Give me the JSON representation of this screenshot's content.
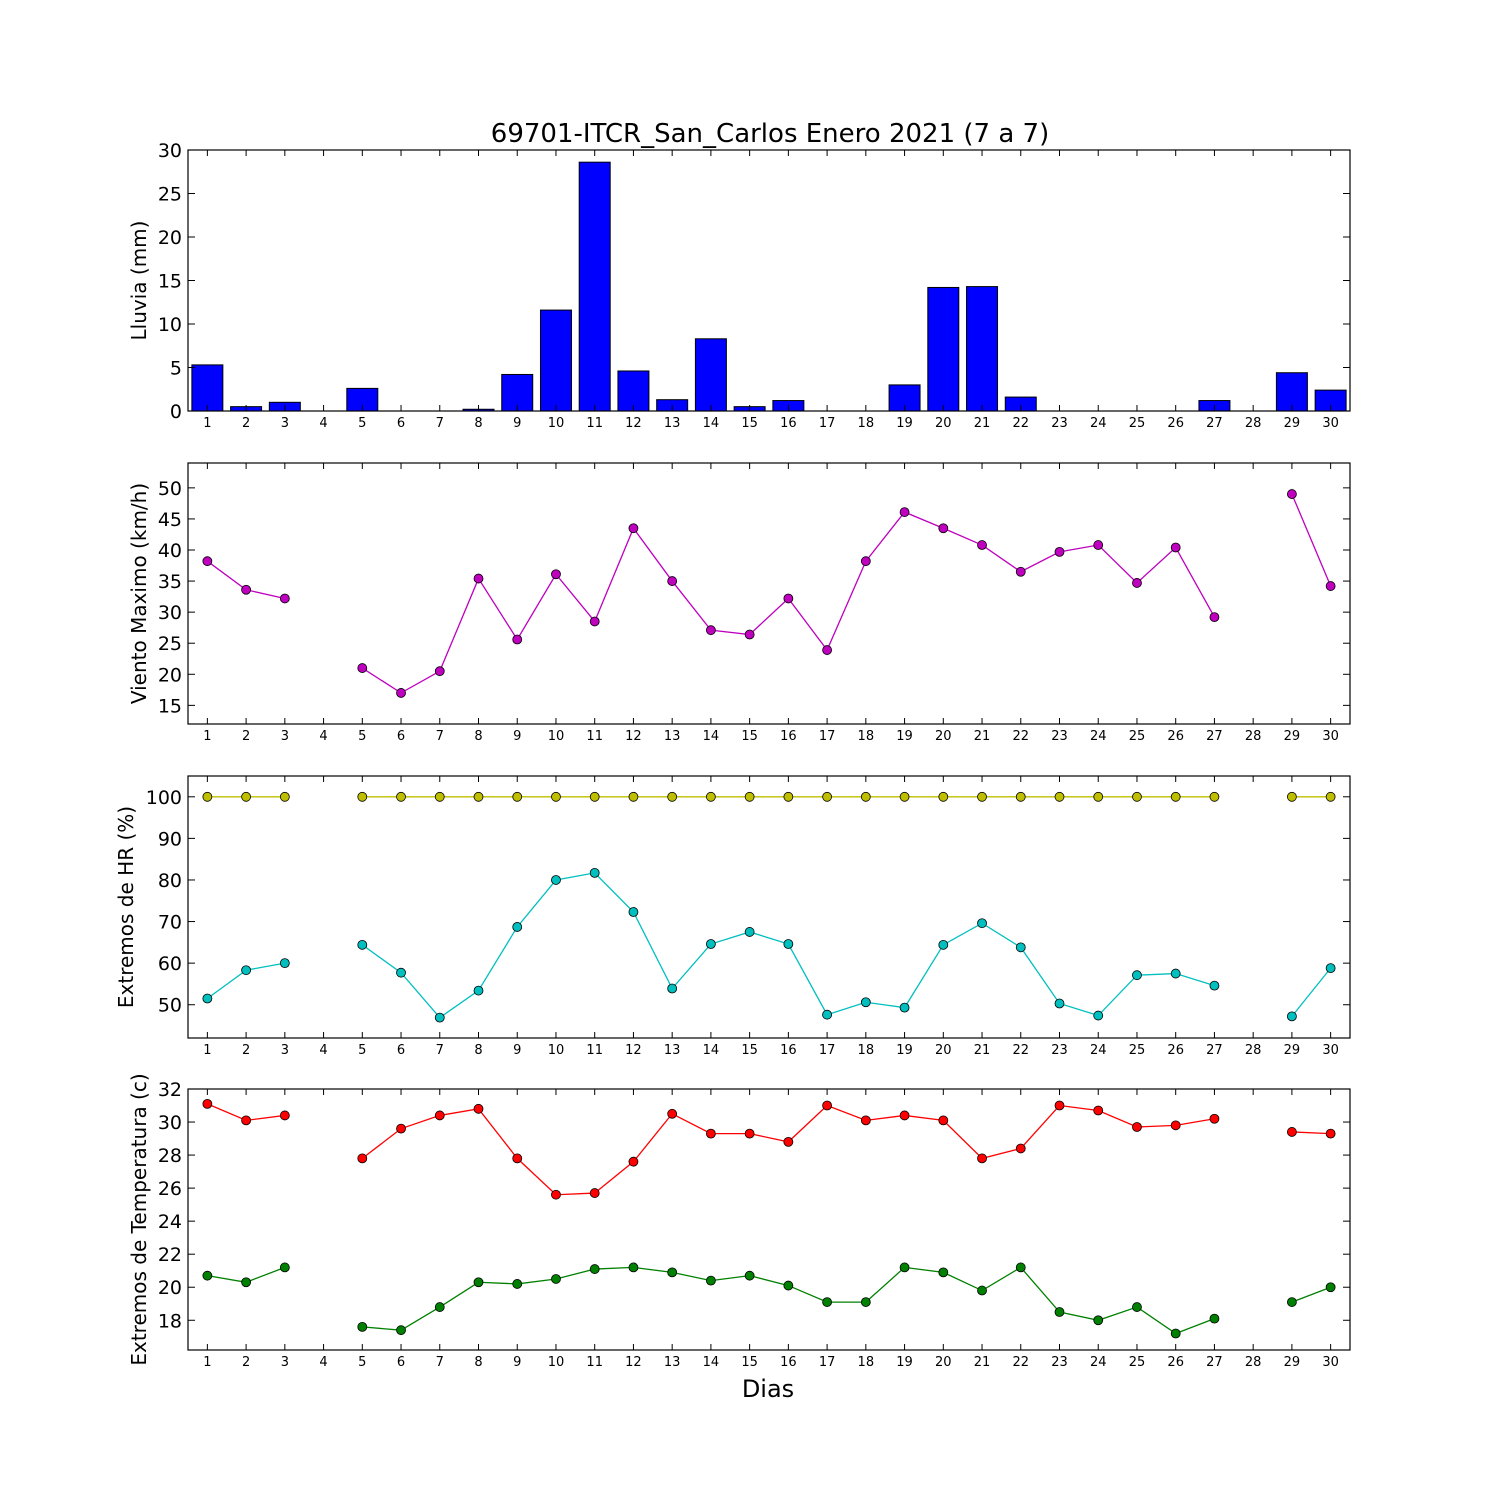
{
  "title": "69701-ITCR_San_Carlos Enero 2021  (7 a 7)",
  "xlabel": "Dias",
  "colors": {
    "rain": "#0000ff",
    "wind": "#bf00bf",
    "hr_max": "#bfbf00",
    "hr_min": "#00bfbf",
    "temp_max": "#ff0000",
    "temp_min": "#008000"
  },
  "chart_data": [
    {
      "type": "bar",
      "ylabel": "Lluvia (mm)",
      "ylim": [
        0,
        30
      ],
      "yticks": [
        0,
        5,
        10,
        15,
        20,
        25,
        30
      ],
      "x": [
        1,
        2,
        3,
        4,
        5,
        6,
        7,
        8,
        9,
        10,
        11,
        12,
        13,
        14,
        15,
        16,
        17,
        18,
        19,
        20,
        21,
        22,
        23,
        24,
        25,
        26,
        27,
        28,
        29,
        30
      ],
      "values": [
        5.3,
        0.5,
        1.0,
        0,
        2.6,
        0,
        0,
        0.2,
        4.2,
        11.6,
        28.6,
        4.6,
        1.3,
        8.3,
        0.5,
        1.2,
        0,
        0,
        3.0,
        14.2,
        14.3,
        1.6,
        0,
        0,
        0,
        0,
        1.2,
        0,
        4.4,
        2.4
      ]
    },
    {
      "type": "line",
      "ylabel": "Viento Maximo (km/h)",
      "ylim": [
        12,
        54
      ],
      "yticks": [
        15,
        20,
        25,
        30,
        35,
        40,
        45,
        50
      ],
      "x": [
        1,
        2,
        3,
        4,
        5,
        6,
        7,
        8,
        9,
        10,
        11,
        12,
        13,
        14,
        15,
        16,
        17,
        18,
        19,
        20,
        21,
        22,
        23,
        24,
        25,
        26,
        27,
        28,
        29,
        30
      ],
      "series": [
        {
          "color": "wind",
          "values": [
            38.2,
            33.6,
            32.2,
            null,
            21.0,
            17.0,
            20.5,
            35.4,
            25.6,
            36.1,
            28.5,
            43.5,
            35.0,
            27.1,
            26.4,
            32.2,
            23.9,
            38.2,
            46.1,
            43.5,
            40.8,
            36.5,
            39.7,
            40.8,
            34.7,
            40.4,
            29.2,
            null,
            49.0,
            34.2
          ]
        }
      ]
    },
    {
      "type": "line",
      "ylabel": "Extremos de HR (%)",
      "ylim": [
        42,
        105
      ],
      "yticks": [
        50,
        60,
        70,
        80,
        90,
        100
      ],
      "x": [
        1,
        2,
        3,
        4,
        5,
        6,
        7,
        8,
        9,
        10,
        11,
        12,
        13,
        14,
        15,
        16,
        17,
        18,
        19,
        20,
        21,
        22,
        23,
        24,
        25,
        26,
        27,
        28,
        29,
        30
      ],
      "series": [
        {
          "color": "hr_max",
          "values": [
            100,
            100,
            100,
            null,
            100,
            100,
            100,
            100,
            100,
            100,
            100,
            100,
            100,
            100,
            100,
            100,
            100,
            100,
            100,
            100,
            100,
            100,
            100,
            100,
            100,
            100,
            100,
            null,
            100,
            100
          ]
        },
        {
          "color": "hr_min",
          "values": [
            51.5,
            58.3,
            60.0,
            null,
            64.4,
            57.7,
            46.9,
            53.4,
            68.7,
            80.0,
            81.7,
            72.3,
            53.9,
            64.6,
            67.5,
            64.6,
            47.6,
            50.6,
            49.3,
            64.4,
            69.6,
            63.8,
            50.3,
            47.4,
            57.1,
            57.5,
            54.6,
            null,
            47.2,
            58.8
          ]
        }
      ]
    },
    {
      "type": "line",
      "ylabel": "Extremos de Temperatura (c)",
      "ylim": [
        16.2,
        32
      ],
      "yticks": [
        18,
        20,
        22,
        24,
        26,
        28,
        30,
        32
      ],
      "x": [
        1,
        2,
        3,
        4,
        5,
        6,
        7,
        8,
        9,
        10,
        11,
        12,
        13,
        14,
        15,
        16,
        17,
        18,
        19,
        20,
        21,
        22,
        23,
        24,
        25,
        26,
        27,
        28,
        29,
        30
      ],
      "series": [
        {
          "color": "temp_max",
          "values": [
            31.1,
            30.1,
            30.4,
            null,
            27.8,
            29.6,
            30.4,
            30.8,
            27.8,
            25.6,
            25.7,
            27.6,
            30.5,
            29.3,
            29.3,
            28.8,
            31.0,
            30.1,
            30.4,
            30.1,
            27.8,
            28.4,
            31.0,
            30.7,
            29.7,
            29.8,
            30.2,
            null,
            29.4,
            29.3
          ]
        },
        {
          "color": "temp_min",
          "values": [
            20.7,
            20.3,
            21.2,
            null,
            17.6,
            17.4,
            18.8,
            20.3,
            20.2,
            20.5,
            21.1,
            21.2,
            20.9,
            20.4,
            20.7,
            20.1,
            19.1,
            19.1,
            21.2,
            20.9,
            19.8,
            21.2,
            18.5,
            18.0,
            18.8,
            17.2,
            18.1,
            null,
            19.1,
            20.0
          ]
        }
      ]
    }
  ]
}
